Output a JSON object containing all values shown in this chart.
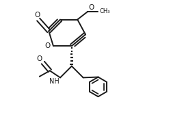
{
  "bg_color": "#ffffff",
  "line_color": "#1a1a1a",
  "line_width": 1.4,
  "figsize": [
    2.5,
    1.68
  ],
  "dpi": 100,
  "xlim": [
    0.0,
    1.0
  ],
  "ylim": [
    0.0,
    1.0
  ]
}
